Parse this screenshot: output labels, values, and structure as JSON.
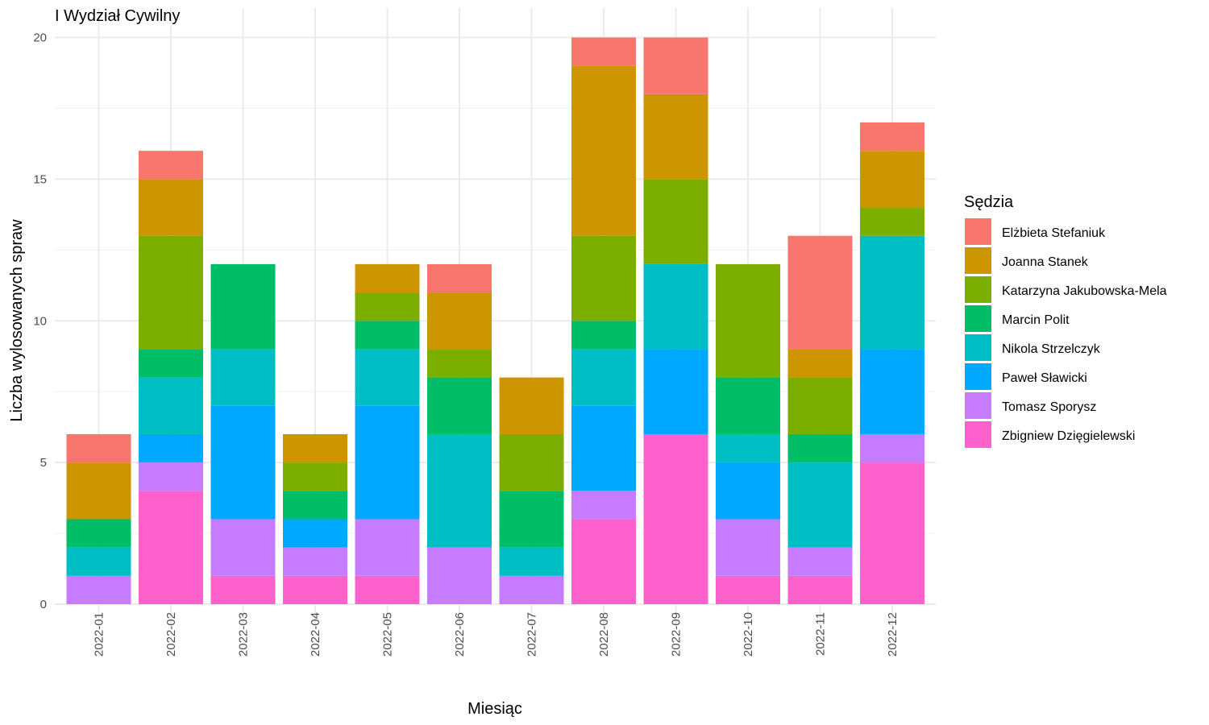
{
  "chart_data": {
    "type": "bar",
    "stacked": true,
    "title": "I Wydział Cywilny",
    "xlabel": "Miesiąc",
    "ylabel": "Liczba wylosowanych spraw",
    "ylim": [
      0,
      20
    ],
    "yticks": [
      0,
      5,
      10,
      15,
      20
    ],
    "grid": true,
    "legend_title": "Sędzia",
    "legend_position": "right",
    "categories": [
      "2022-01",
      "2022-02",
      "2022-03",
      "2022-04",
      "2022-05",
      "2022-06",
      "2022-07",
      "2022-08",
      "2022-09",
      "2022-10",
      "2022-11",
      "2022-12"
    ],
    "series": [
      {
        "name": "Elżbieta Stefaniuk",
        "color": "#F8766D",
        "values": [
          1,
          1,
          0,
          0,
          0,
          1,
          0,
          1,
          2,
          0,
          4,
          1
        ]
      },
      {
        "name": "Joanna Stanek",
        "color": "#CD9600",
        "values": [
          2,
          2,
          0,
          1,
          1,
          2,
          2,
          6,
          3,
          0,
          1,
          2
        ]
      },
      {
        "name": "Katarzyna Jakubowska-Mela",
        "color": "#7CAE00",
        "values": [
          0,
          4,
          0,
          1,
          1,
          1,
          2,
          3,
          3,
          4,
          2,
          1
        ]
      },
      {
        "name": "Marcin Polit",
        "color": "#00BE67",
        "values": [
          1,
          1,
          3,
          1,
          1,
          2,
          2,
          1,
          0,
          2,
          1,
          0
        ]
      },
      {
        "name": "Nikola Strzelczyk",
        "color": "#00BFC4",
        "values": [
          1,
          2,
          2,
          0,
          2,
          4,
          1,
          2,
          3,
          1,
          3,
          4
        ]
      },
      {
        "name": "Paweł Sławicki",
        "color": "#00A9FF",
        "values": [
          0,
          1,
          4,
          1,
          4,
          0,
          0,
          3,
          3,
          2,
          0,
          3
        ]
      },
      {
        "name": "Tomasz Sporysz",
        "color": "#C77CFF",
        "values": [
          1,
          1,
          2,
          1,
          2,
          2,
          1,
          1,
          0,
          2,
          1,
          1
        ]
      },
      {
        "name": "Zbigniew Dzięgielewski",
        "color": "#FF61CC",
        "values": [
          0,
          4,
          1,
          1,
          1,
          0,
          0,
          3,
          6,
          1,
          1,
          5
        ]
      }
    ]
  }
}
